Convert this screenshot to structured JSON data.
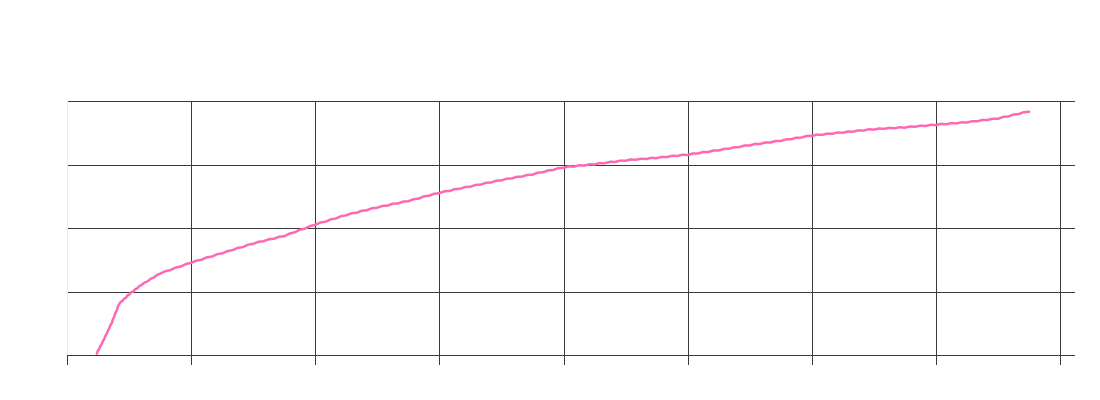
{
  "chart_data": {
    "type": "line",
    "title": "",
    "xlabel": "",
    "ylabel": "",
    "xlim": [
      0,
      8
    ],
    "ylim": [
      0,
      4
    ],
    "grid": true,
    "tick_labels_shown": false,
    "x_ticks": [
      0,
      1,
      2,
      3,
      4,
      5,
      6,
      7,
      8
    ],
    "y_ticks": [
      0,
      1,
      2,
      3,
      4
    ],
    "series": [
      {
        "color": "#ff69b4",
        "points": [
          [
            0.24,
            0.02
          ],
          [
            0.3,
            0.25
          ],
          [
            0.36,
            0.5
          ],
          [
            0.42,
            0.8
          ],
          [
            0.5,
            0.95
          ],
          [
            0.6,
            1.1
          ],
          [
            0.75,
            1.28
          ],
          [
            1.0,
            1.45
          ],
          [
            1.25,
            1.6
          ],
          [
            1.5,
            1.75
          ],
          [
            1.75,
            1.87
          ],
          [
            2.0,
            2.05
          ],
          [
            2.25,
            2.2
          ],
          [
            2.5,
            2.32
          ],
          [
            2.75,
            2.42
          ],
          [
            3.0,
            2.55
          ],
          [
            3.25,
            2.65
          ],
          [
            3.5,
            2.75
          ],
          [
            3.75,
            2.84
          ],
          [
            4.0,
            2.95
          ],
          [
            4.25,
            3.0
          ],
          [
            4.5,
            3.06
          ],
          [
            4.75,
            3.1
          ],
          [
            5.0,
            3.15
          ],
          [
            5.25,
            3.22
          ],
          [
            5.5,
            3.3
          ],
          [
            5.75,
            3.37
          ],
          [
            6.0,
            3.45
          ],
          [
            6.25,
            3.5
          ],
          [
            6.5,
            3.55
          ],
          [
            6.75,
            3.58
          ],
          [
            7.0,
            3.62
          ],
          [
            7.25,
            3.66
          ],
          [
            7.5,
            3.72
          ],
          [
            7.75,
            3.83
          ]
        ]
      }
    ]
  }
}
